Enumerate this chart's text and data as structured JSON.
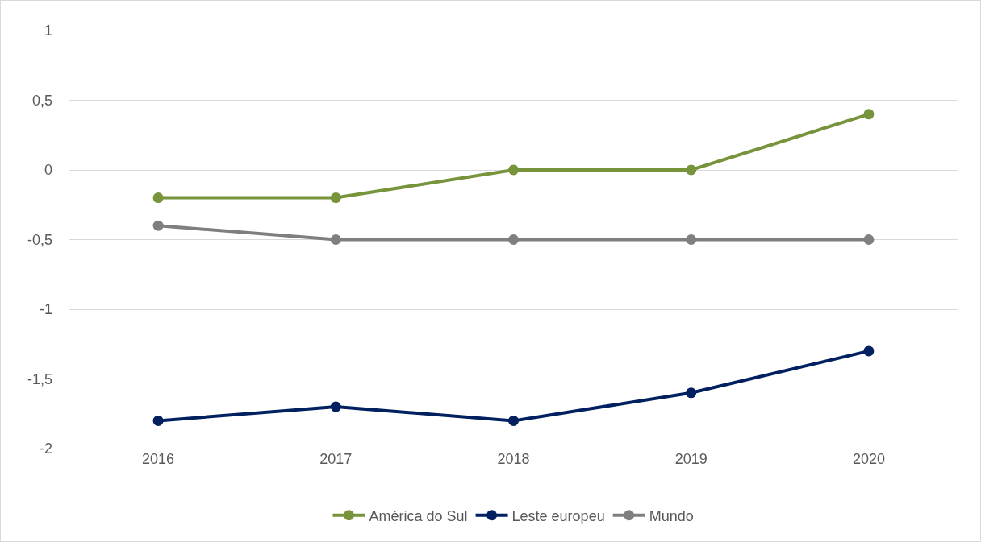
{
  "chart_data": {
    "type": "line",
    "categories": [
      "2016",
      "2017",
      "2018",
      "2019",
      "2020"
    ],
    "series": [
      {
        "name": "América do Sul",
        "color": "#77933c",
        "values": [
          -0.2,
          -0.2,
          0,
          0,
          0.4
        ]
      },
      {
        "name": "Leste europeu",
        "color": "#002060",
        "values": [
          -1.8,
          -1.7,
          -1.8,
          -1.6,
          -1.3
        ]
      },
      {
        "name": "Mundo",
        "color": "#7f7f7f",
        "values": [
          -0.4,
          -0.5,
          -0.5,
          -0.5,
          -0.5
        ]
      }
    ],
    "ylim": [
      -2,
      1
    ],
    "yticks": [
      {
        "value": -2,
        "label": "-2"
      },
      {
        "value": -1.5,
        "label": "-1,5"
      },
      {
        "value": -1,
        "label": "-1"
      },
      {
        "value": -0.5,
        "label": "-0,5"
      },
      {
        "value": 0,
        "label": "0"
      },
      {
        "value": 0.5,
        "label": "0,5"
      },
      {
        "value": 1,
        "label": "1"
      }
    ],
    "grid": "y",
    "legend": "bottom",
    "marker": "circle",
    "line_style": "solid"
  }
}
